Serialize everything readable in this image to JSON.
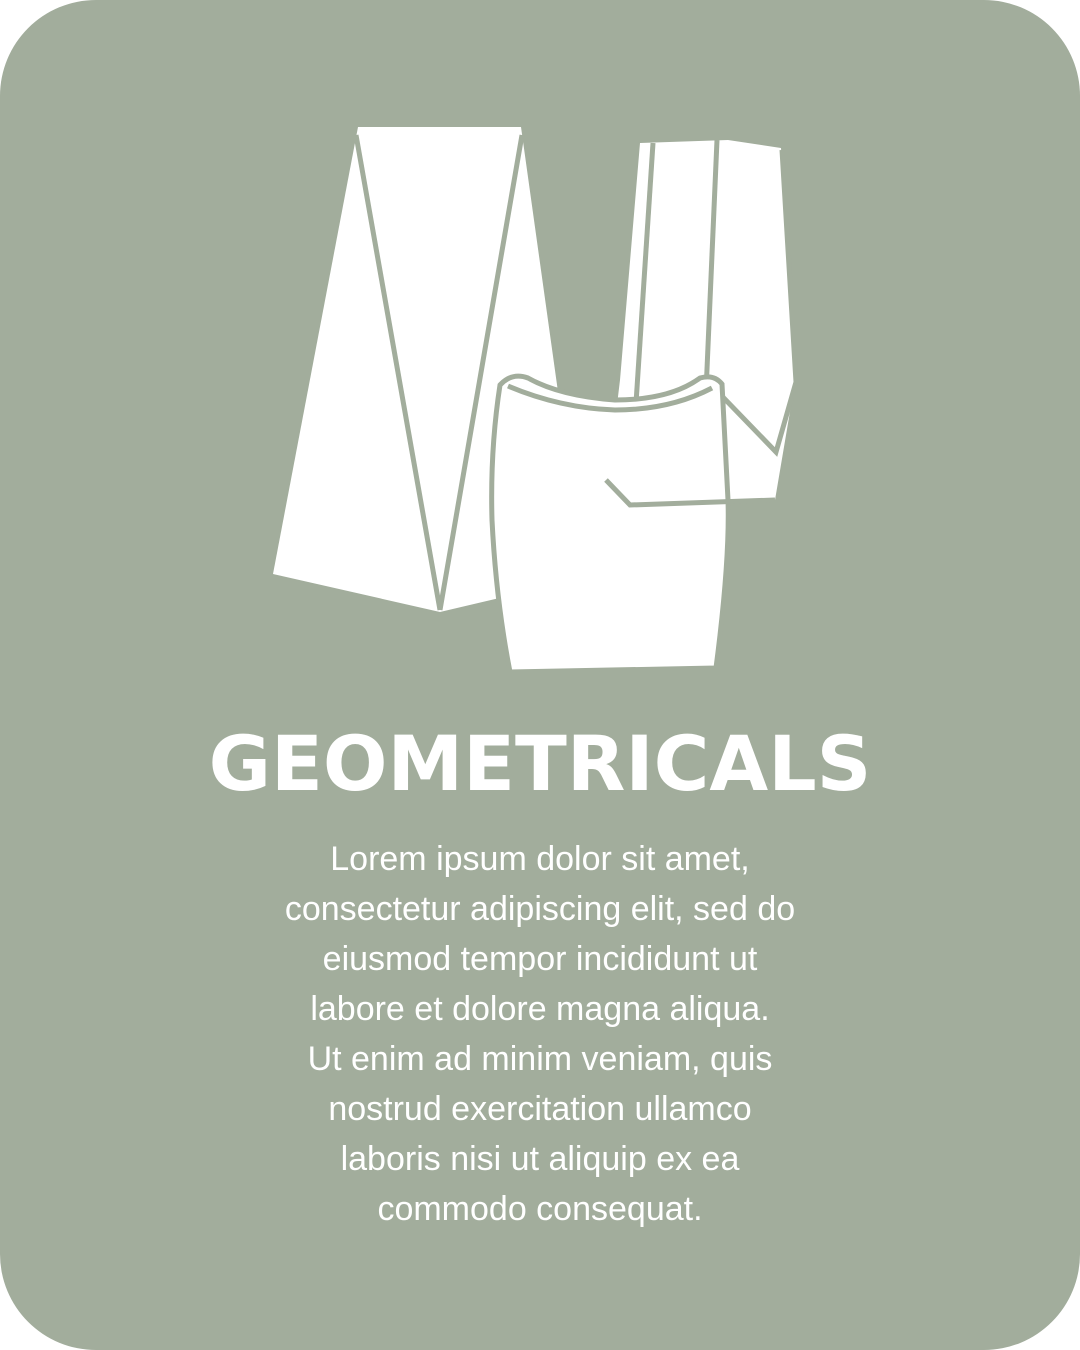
{
  "card": {
    "background_color": "#a2ad9c",
    "accent_color": "#ffffff",
    "illustration_icon": "geometric-garments-icon",
    "title": "GEOMETRICALS",
    "body": "Lorem ipsum dolor sit amet,\nconsectetur adipiscing elit, sed do\neiusmod tempor incididunt ut\nlabore et dolore magna aliqua.\nUt enim ad minim veniam, quis\nnostrud exercitation ullamco\nlaboris nisi ut aliquip ex ea\ncommodo consequat."
  }
}
